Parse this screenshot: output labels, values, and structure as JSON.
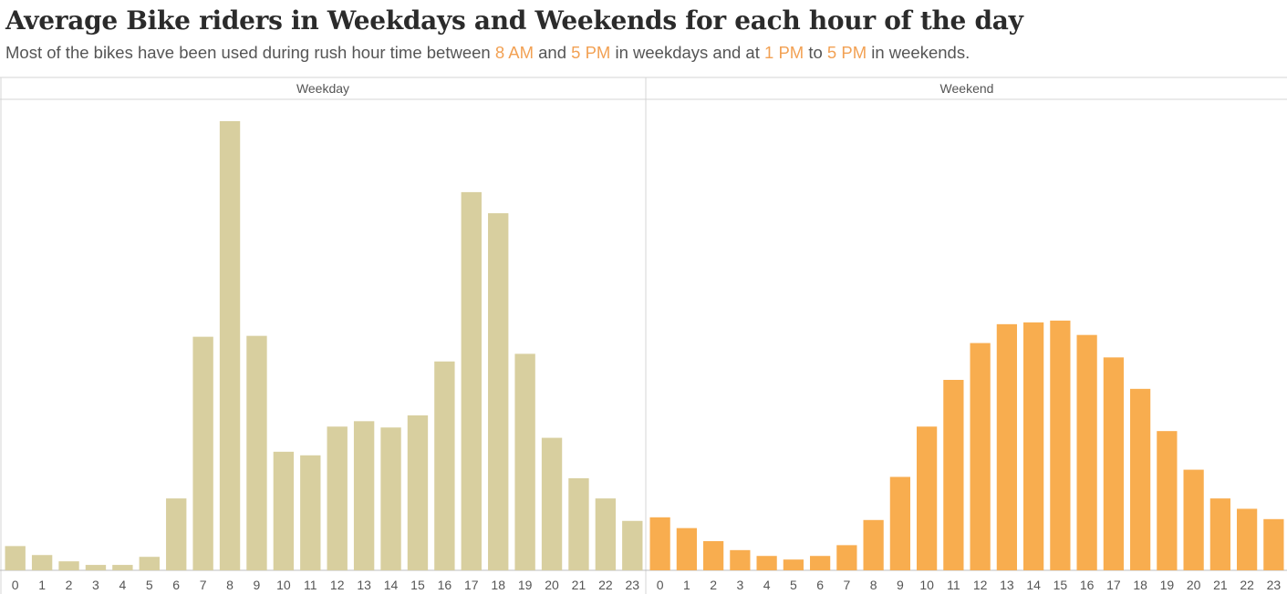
{
  "header": {
    "title": "Average Bike riders in Weekdays and Weekends for each hour of the day",
    "subtitle": {
      "t1": "Most of the bikes have been used during rush hour time between ",
      "h1": "8 AM",
      "t2": " and ",
      "h2": "5 PM",
      "t3": " in weekdays and at ",
      "h3": "1 PM",
      "t4": " to ",
      "h4": "5 PM",
      "t5": " in weekends."
    }
  },
  "colors": {
    "weekday": "#d8cf9f",
    "weekend": "#f8ad4f",
    "highlight": "#f2a154",
    "grid": "#d0d0d0"
  },
  "chart_data": {
    "type": "bar",
    "categories": [
      "0",
      "1",
      "2",
      "3",
      "4",
      "5",
      "6",
      "7",
      "8",
      "9",
      "10",
      "11",
      "12",
      "13",
      "14",
      "15",
      "16",
      "17",
      "18",
      "19",
      "20",
      "21",
      "22",
      "23"
    ],
    "series": [
      {
        "name": "Weekday",
        "values": [
          54,
          34,
          20,
          12,
          12,
          30,
          160,
          520,
          1000,
          522,
          264,
          256,
          320,
          332,
          318,
          345,
          465,
          842,
          795,
          482,
          295,
          205,
          160,
          110
        ]
      },
      {
        "name": "Weekend",
        "values": [
          118,
          94,
          65,
          45,
          32,
          24,
          32,
          56,
          112,
          208,
          320,
          424,
          506,
          548,
          552,
          556,
          524,
          474,
          404,
          310,
          224,
          160,
          137,
          114
        ]
      }
    ],
    "ylim": [
      0,
      1050
    ],
    "grid": false,
    "legend": "none"
  }
}
